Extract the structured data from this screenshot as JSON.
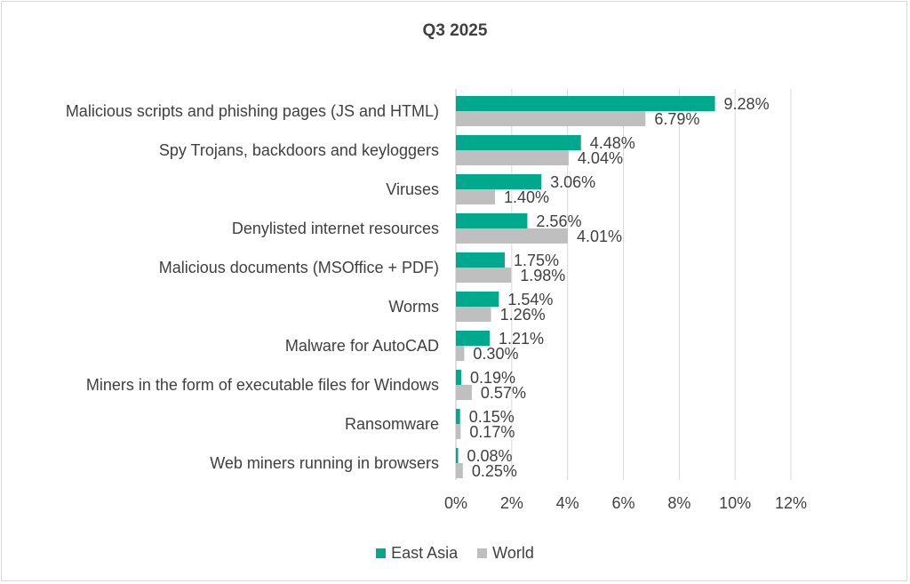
{
  "chart_data": {
    "type": "bar",
    "orientation": "horizontal",
    "title": "Q3 2025",
    "categories": [
      "Malicious scripts and phishing pages (JS and HTML)",
      "Spy Trojans, backdoors and keyloggers",
      "Viruses",
      "Denylisted internet resources",
      "Malicious documents (MSOffice + PDF)",
      "Worms",
      "Malware for AutoCAD",
      "Miners in the form of executable files for Windows",
      "Ransomware",
      "Web miners running in browsers"
    ],
    "series": [
      {
        "name": "East Asia",
        "color": "#00a88e",
        "values": [
          9.28,
          4.48,
          3.06,
          2.56,
          1.75,
          1.54,
          1.21,
          0.19,
          0.15,
          0.08
        ],
        "labels": [
          "9.28%",
          "4.48%",
          "3.06%",
          "2.56%",
          "1.75%",
          "1.54%",
          "1.21%",
          "0.19%",
          "0.15%",
          "0.08%"
        ]
      },
      {
        "name": "World",
        "color": "#bfbfbf",
        "values": [
          6.79,
          4.04,
          1.4,
          4.01,
          1.98,
          1.26,
          0.3,
          0.57,
          0.17,
          0.25
        ],
        "labels": [
          "6.79%",
          "4.04%",
          "1.40%",
          "4.01%",
          "1.98%",
          "1.26%",
          "0.30%",
          "0.57%",
          "0.17%",
          "0.25%"
        ]
      }
    ],
    "xlim": [
      0,
      12
    ],
    "ticks": [
      0,
      2,
      4,
      6,
      8,
      10,
      12
    ],
    "tick_labels": [
      "0%",
      "2%",
      "4%",
      "6%",
      "8%",
      "10%",
      "12%"
    ],
    "grid": true,
    "legend_position": "bottom"
  }
}
